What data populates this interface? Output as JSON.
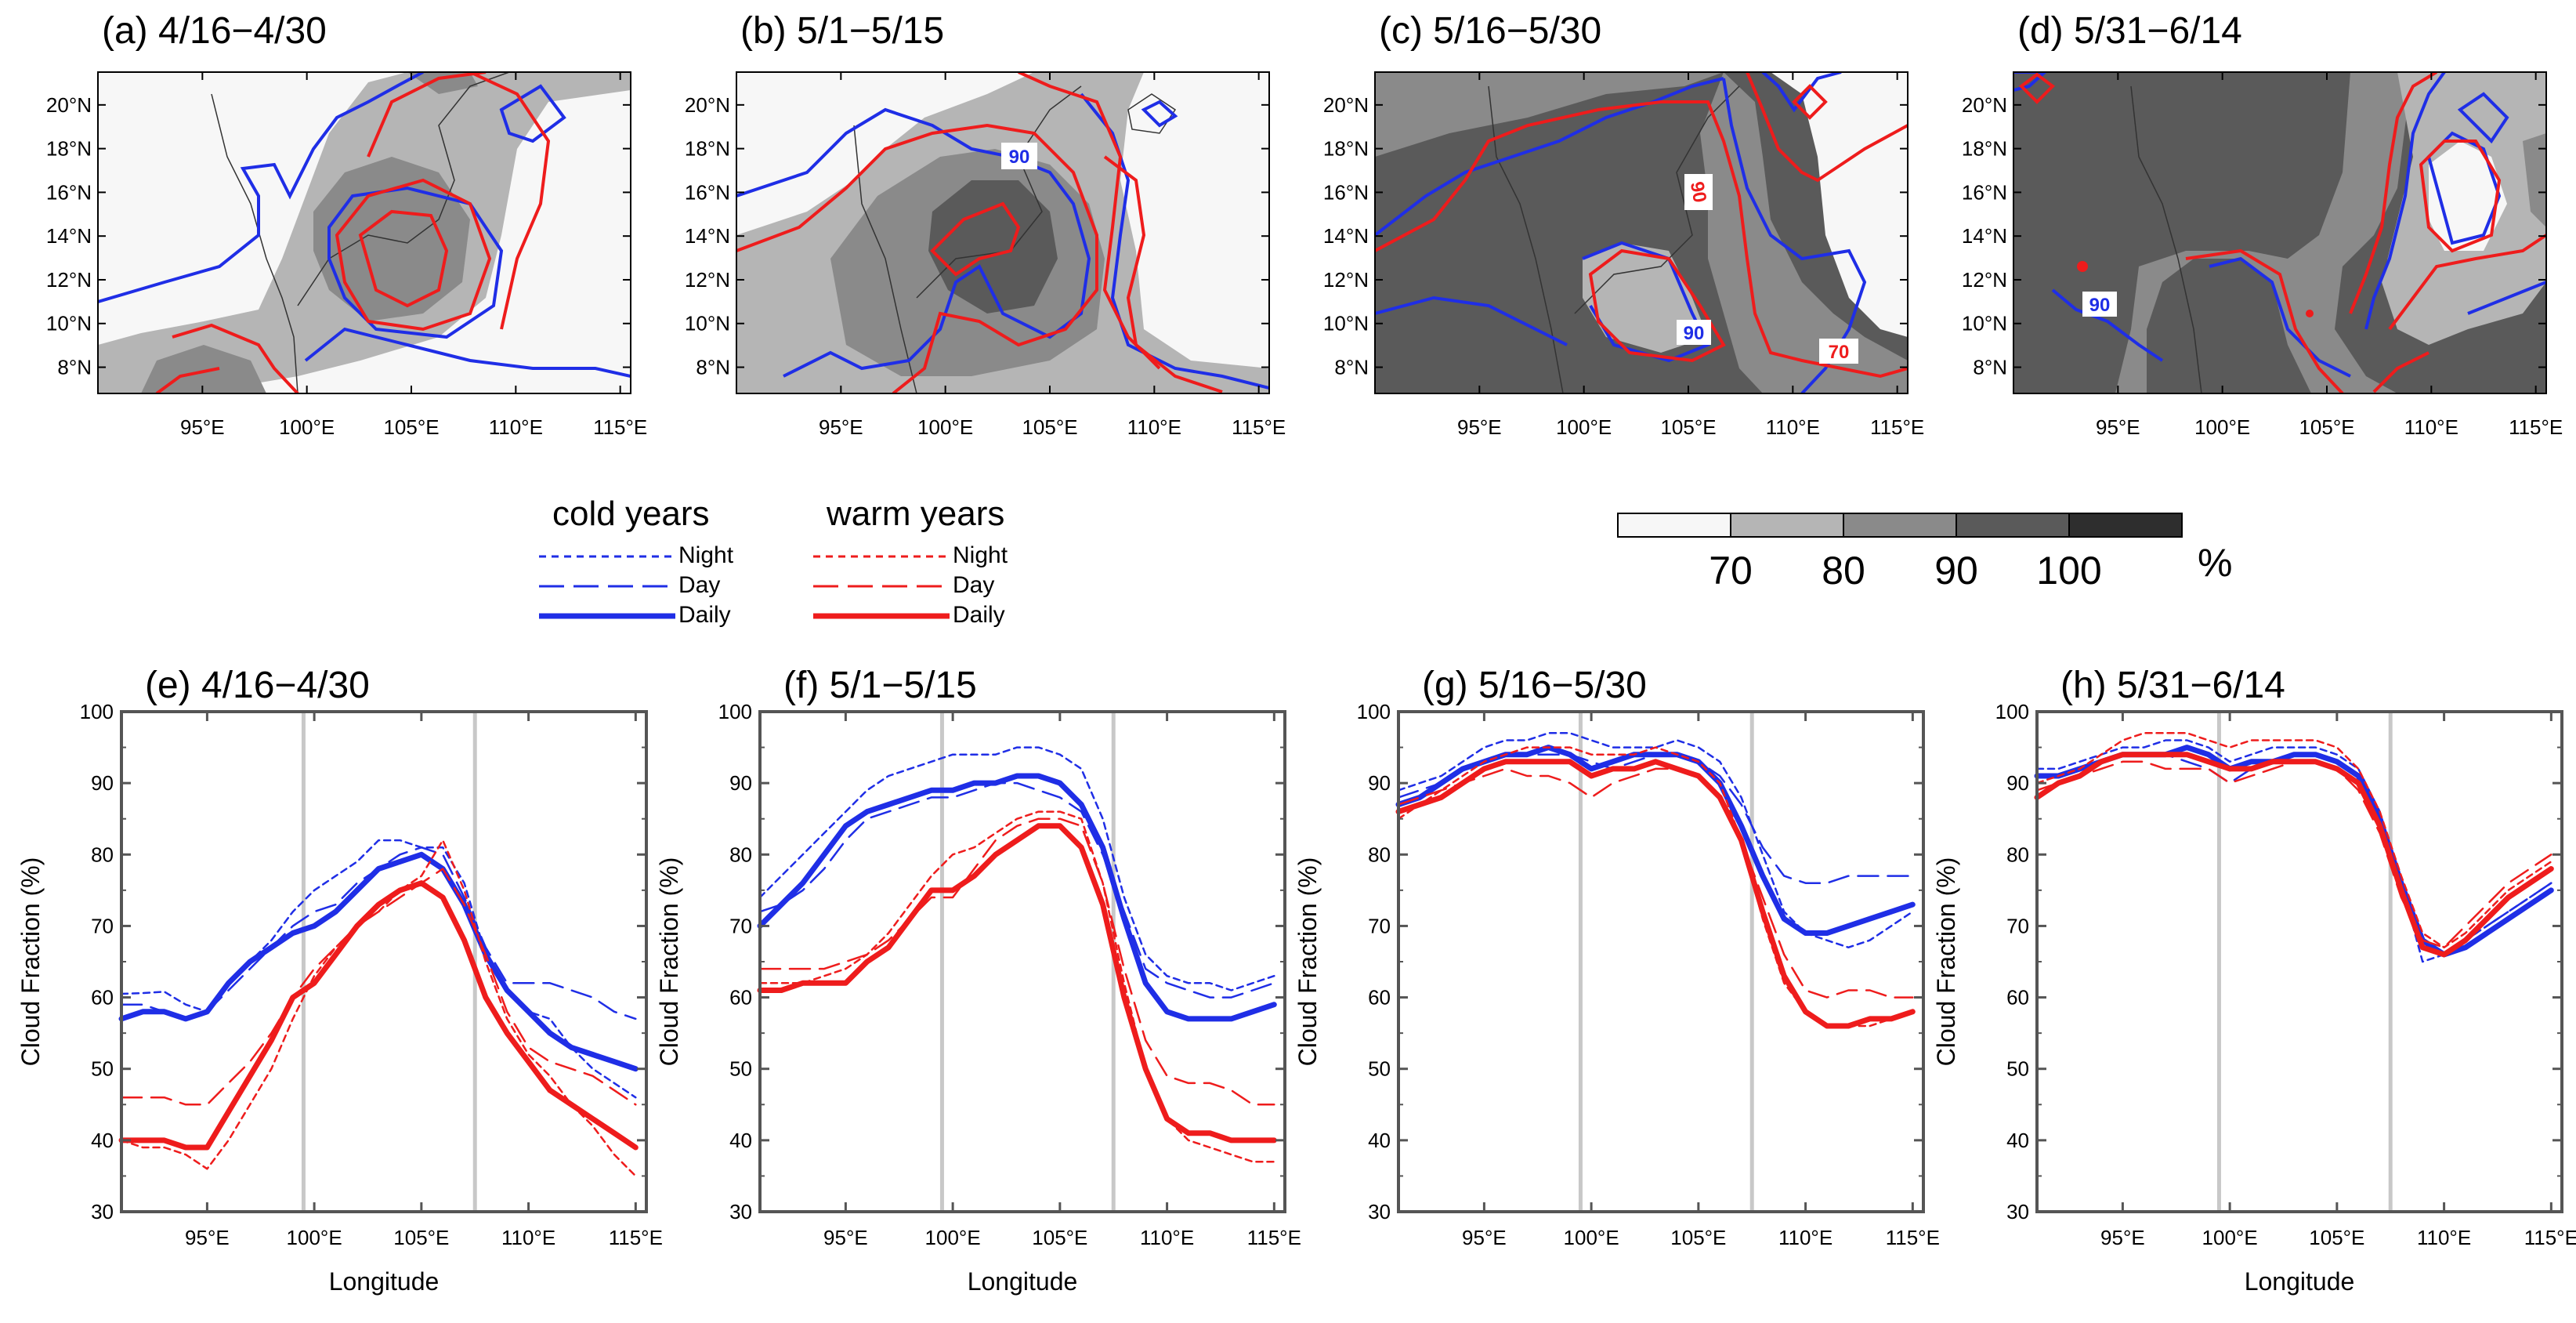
{
  "figure": {
    "map_panels": [
      {
        "title": "(a) 4/16−4/30",
        "contour_labels": []
      },
      {
        "title": "(b) 5/1−5/15",
        "contour_labels": [
          {
            "text": "90",
            "color": "blue"
          }
        ]
      },
      {
        "title": "(c) 5/16−5/30",
        "contour_labels": [
          {
            "text": "90",
            "color": "red"
          },
          {
            "text": "90",
            "color": "blue"
          },
          {
            "text": "70",
            "color": "red"
          }
        ]
      },
      {
        "title": "(d) 5/31−6/14",
        "contour_labels": [
          {
            "text": "90",
            "color": "blue"
          }
        ]
      }
    ],
    "map_lat_ticks": [
      "20°N",
      "18°N",
      "16°N",
      "14°N",
      "12°N",
      "10°N",
      "8°N"
    ],
    "map_lon_ticks": [
      "95°E",
      "100°E",
      "105°E",
      "110°E",
      "115°E"
    ],
    "legend": {
      "cold": {
        "header": "cold years",
        "items": [
          "Night",
          "Day",
          "Daily"
        ],
        "color": "#1f2ee6"
      },
      "warm": {
        "header": "warm years",
        "items": [
          "Night",
          "Day",
          "Daily"
        ],
        "color": "#ee1c1c"
      }
    },
    "colorbar": {
      "labels": [
        "70",
        "80",
        "90",
        "100"
      ],
      "unit": "%",
      "colors": [
        "#f7f7f7",
        "#b5b5b5",
        "#8a8a8a",
        "#5a5a5a",
        "#2e2e2e"
      ]
    }
  },
  "chart_data": [
    {
      "type": "line",
      "title": "(e) 4/16−4/30",
      "xlabel": "Longitude",
      "ylabel": "Cloud Fraction (%)",
      "x": [
        91,
        92,
        93,
        94,
        95,
        96,
        97,
        98,
        99,
        100,
        101,
        102,
        103,
        104,
        105,
        106,
        107,
        108,
        109,
        110,
        111,
        112,
        113,
        114,
        115
      ],
      "xlim": [
        91,
        115.5
      ],
      "ylim": [
        30,
        100
      ],
      "xticks": [
        95,
        100,
        105,
        110,
        115
      ],
      "xticklabels": [
        "95°E",
        "100°E",
        "105°E",
        "110°E",
        "115°E"
      ],
      "yticks": [
        30,
        40,
        50,
        60,
        70,
        80,
        90,
        100
      ],
      "vlines": [
        99.5,
        107.5
      ],
      "series": [
        {
          "name": "cold Night",
          "color": "#1f2ee6",
          "style": "night",
          "values": [
            60.5,
            60.6,
            60.8,
            59,
            58,
            62,
            65,
            68,
            72,
            75,
            77,
            79,
            82,
            82,
            81,
            81,
            76,
            66,
            61,
            58,
            57,
            53,
            50,
            48,
            46
          ]
        },
        {
          "name": "cold Day",
          "color": "#1f2ee6",
          "style": "day",
          "values": [
            59,
            59,
            58,
            57,
            58,
            61,
            64,
            67,
            70,
            72,
            73,
            76,
            78,
            80,
            81,
            80,
            74,
            67,
            62,
            62,
            62,
            61,
            60,
            58,
            57
          ]
        },
        {
          "name": "cold Daily",
          "color": "#1f2ee6",
          "style": "daily",
          "values": [
            57,
            58,
            58,
            57,
            58,
            62,
            65,
            67,
            69,
            70,
            72,
            75,
            78,
            79,
            80,
            78,
            73,
            66,
            61,
            58,
            55,
            53,
            52,
            51,
            50
          ]
        },
        {
          "name": "warm Night",
          "color": "#ee1c1c",
          "style": "night",
          "values": [
            40,
            39,
            39,
            38,
            36,
            40,
            45,
            50,
            57,
            63,
            67,
            70,
            72,
            75,
            77,
            82,
            75,
            65,
            57,
            52,
            49,
            45,
            42,
            38,
            35
          ]
        },
        {
          "name": "warm Day",
          "color": "#ee1c1c",
          "style": "day",
          "values": [
            46,
            46,
            46,
            45,
            45,
            48,
            51,
            55,
            60,
            64,
            67,
            70,
            72,
            74,
            76,
            78,
            73,
            66,
            58,
            53,
            51,
            50,
            49,
            47,
            45
          ]
        },
        {
          "name": "warm Daily",
          "color": "#ee1c1c",
          "style": "daily",
          "values": [
            40,
            40,
            40,
            39,
            39,
            44,
            49,
            54,
            60,
            62,
            66,
            70,
            73,
            75,
            76,
            74,
            68,
            60,
            55,
            51,
            47,
            45,
            43,
            41,
            39
          ]
        }
      ]
    },
    {
      "type": "line",
      "title": "(f) 5/1−5/15",
      "xlabel": "Longitude",
      "ylabel": "Cloud Fraction (%)",
      "x": [
        91,
        92,
        93,
        94,
        95,
        96,
        97,
        98,
        99,
        100,
        101,
        102,
        103,
        104,
        105,
        106,
        107,
        108,
        109,
        110,
        111,
        112,
        113,
        114,
        115
      ],
      "xlim": [
        91,
        115.5
      ],
      "ylim": [
        30,
        100
      ],
      "xticks": [
        95,
        100,
        105,
        110,
        115
      ],
      "xticklabels": [
        "95°E",
        "100°E",
        "105°E",
        "110°E",
        "115°E"
      ],
      "yticks": [
        30,
        40,
        50,
        60,
        70,
        80,
        90,
        100
      ],
      "vlines": [
        99.5,
        107.5
      ],
      "series": [
        {
          "name": "cold Night",
          "color": "#1f2ee6",
          "style": "night",
          "values": [
            74,
            77,
            80,
            83,
            86,
            89,
            91,
            92,
            93,
            94,
            94,
            94,
            95,
            95,
            94,
            92,
            85,
            74,
            66,
            63,
            62,
            62,
            61,
            62,
            63
          ]
        },
        {
          "name": "cold Day",
          "color": "#1f2ee6",
          "style": "day",
          "values": [
            72,
            73,
            75,
            78,
            82,
            85,
            86,
            87,
            88,
            88,
            89,
            90,
            90,
            89,
            88,
            86,
            80,
            72,
            64,
            62,
            61,
            60,
            60,
            61,
            62
          ]
        },
        {
          "name": "cold Daily",
          "color": "#1f2ee6",
          "style": "daily",
          "values": [
            70,
            73,
            76,
            80,
            84,
            86,
            87,
            88,
            89,
            89,
            90,
            90,
            91,
            91,
            90,
            87,
            81,
            71,
            62,
            58,
            57,
            57,
            57,
            58,
            59
          ]
        },
        {
          "name": "warm Night",
          "color": "#ee1c1c",
          "style": "night",
          "values": [
            62,
            62,
            62,
            63,
            64,
            66,
            69,
            73,
            77,
            80,
            81,
            83,
            85,
            86,
            86,
            85,
            76,
            62,
            50,
            43,
            40,
            39,
            38,
            37,
            37
          ]
        },
        {
          "name": "warm Day",
          "color": "#ee1c1c",
          "style": "day",
          "values": [
            64,
            64,
            64,
            64,
            65,
            66,
            68,
            71,
            74,
            74,
            78,
            82,
            84,
            85,
            85,
            84,
            76,
            64,
            54,
            49,
            48,
            48,
            47,
            45,
            45
          ]
        },
        {
          "name": "warm Daily",
          "color": "#ee1c1c",
          "style": "daily",
          "values": [
            61,
            61,
            62,
            62,
            62,
            65,
            67,
            71,
            75,
            75,
            77,
            80,
            82,
            84,
            84,
            81,
            73,
            60,
            50,
            43,
            41,
            41,
            40,
            40,
            40
          ]
        }
      ]
    },
    {
      "type": "line",
      "title": "(g) 5/16−5/30",
      "xlabel": "",
      "ylabel": "Cloud Fraction (%)",
      "x": [
        91,
        92,
        93,
        94,
        95,
        96,
        97,
        98,
        99,
        100,
        101,
        102,
        103,
        104,
        105,
        106,
        107,
        108,
        109,
        110,
        111,
        112,
        113,
        114,
        115
      ],
      "xlim": [
        91,
        115.5
      ],
      "ylim": [
        30,
        100
      ],
      "xticks": [
        95,
        100,
        105,
        110,
        115
      ],
      "xticklabels": [
        "95°E",
        "100°E",
        "105°E",
        "110°E",
        "115°E"
      ],
      "yticks": [
        30,
        40,
        50,
        60,
        70,
        80,
        90,
        100
      ],
      "vlines": [
        99.5,
        107.5
      ],
      "series": [
        {
          "name": "cold Night",
          "color": "#1f2ee6",
          "style": "night",
          "values": [
            89,
            90,
            91,
            93,
            95,
            96,
            96,
            97,
            97,
            96,
            95,
            95,
            95,
            96,
            95,
            93,
            88,
            80,
            72,
            69,
            68,
            67,
            68,
            70,
            72
          ]
        },
        {
          "name": "cold Day",
          "color": "#1f2ee6",
          "style": "day",
          "values": [
            88,
            89,
            90,
            92,
            93,
            94,
            94,
            94,
            94,
            93,
            92,
            93,
            94,
            94,
            93,
            91,
            87,
            81,
            77,
            76,
            76,
            77,
            77,
            77,
            77
          ]
        },
        {
          "name": "cold Daily",
          "color": "#1f2ee6",
          "style": "daily",
          "values": [
            87,
            88,
            90,
            92,
            93,
            94,
            94,
            95,
            94,
            92,
            93,
            94,
            94,
            94,
            93,
            90,
            84,
            77,
            71,
            69,
            69,
            70,
            71,
            72,
            73
          ]
        },
        {
          "name": "warm Night",
          "color": "#ee1c1c",
          "style": "night",
          "values": [
            85,
            87,
            89,
            91,
            93,
            94,
            95,
            95,
            95,
            94,
            94,
            94,
            95,
            94,
            93,
            90,
            82,
            71,
            62,
            58,
            56,
            56,
            56,
            57,
            58
          ]
        },
        {
          "name": "warm Day",
          "color": "#ee1c1c",
          "style": "day",
          "values": [
            87,
            88,
            89,
            90,
            91,
            92,
            91,
            91,
            90,
            88,
            90,
            91,
            92,
            92,
            91,
            88,
            82,
            74,
            66,
            61,
            60,
            61,
            61,
            60,
            60
          ]
        },
        {
          "name": "warm Daily",
          "color": "#ee1c1c",
          "style": "daily",
          "values": [
            86,
            87,
            88,
            90,
            92,
            93,
            93,
            93,
            93,
            91,
            92,
            92,
            93,
            92,
            91,
            88,
            82,
            72,
            63,
            58,
            56,
            56,
            57,
            57,
            58
          ]
        }
      ]
    },
    {
      "type": "line",
      "title": "(h) 5/31−6/14",
      "xlabel": "Longitude",
      "ylabel": "Cloud Fraction (%)",
      "x": [
        91,
        92,
        93,
        94,
        95,
        96,
        97,
        98,
        99,
        100,
        101,
        102,
        103,
        104,
        105,
        106,
        107,
        108,
        109,
        110,
        111,
        112,
        113,
        114,
        115
      ],
      "xlim": [
        91,
        115.5
      ],
      "ylim": [
        30,
        100
      ],
      "xticks": [
        95,
        100,
        105,
        110,
        115
      ],
      "xticklabels": [
        "95°E",
        "100°E",
        "105°E",
        "110°E",
        "115°E"
      ],
      "yticks": [
        30,
        40,
        50,
        60,
        70,
        80,
        90,
        100
      ],
      "vlines": [
        99.5,
        107.5
      ],
      "series": [
        {
          "name": "cold Night",
          "color": "#1f2ee6",
          "style": "night",
          "values": [
            92,
            92,
            93,
            94,
            95,
            95,
            96,
            96,
            95,
            93,
            94,
            95,
            95,
            95,
            94,
            92,
            86,
            76,
            65,
            66,
            68,
            70,
            72,
            74,
            76
          ]
        },
        {
          "name": "cold Day",
          "color": "#1f2ee6",
          "style": "day",
          "values": [
            91,
            91,
            92,
            93,
            94,
            94,
            94,
            93,
            92,
            90,
            92,
            93,
            94,
            94,
            93,
            91,
            85,
            76,
            68,
            66,
            68,
            70,
            72,
            74,
            76
          ]
        },
        {
          "name": "cold Daily",
          "color": "#1f2ee6",
          "style": "daily",
          "values": [
            91,
            91,
            92,
            93,
            94,
            94,
            94,
            95,
            94,
            92,
            93,
            93,
            94,
            94,
            93,
            91,
            85,
            76,
            68,
            66,
            67,
            69,
            71,
            73,
            75
          ]
        },
        {
          "name": "warm Night",
          "color": "#ee1c1c",
          "style": "night",
          "values": [
            90,
            91,
            92,
            94,
            96,
            97,
            97,
            97,
            96,
            95,
            96,
            96,
            96,
            96,
            95,
            92,
            86,
            77,
            69,
            67,
            69,
            72,
            75,
            77,
            79
          ]
        },
        {
          "name": "warm Day",
          "color": "#ee1c1c",
          "style": "day",
          "values": [
            89,
            90,
            91,
            92,
            93,
            93,
            92,
            92,
            92,
            90,
            91,
            92,
            93,
            93,
            92,
            89,
            83,
            74,
            68,
            67,
            70,
            73,
            76,
            78,
            80
          ]
        },
        {
          "name": "warm Daily",
          "color": "#ee1c1c",
          "style": "daily",
          "values": [
            88,
            90,
            91,
            93,
            94,
            94,
            94,
            94,
            93,
            92,
            92,
            93,
            93,
            93,
            92,
            90,
            84,
            75,
            67,
            66,
            68,
            71,
            74,
            76,
            78
          ]
        }
      ]
    }
  ]
}
